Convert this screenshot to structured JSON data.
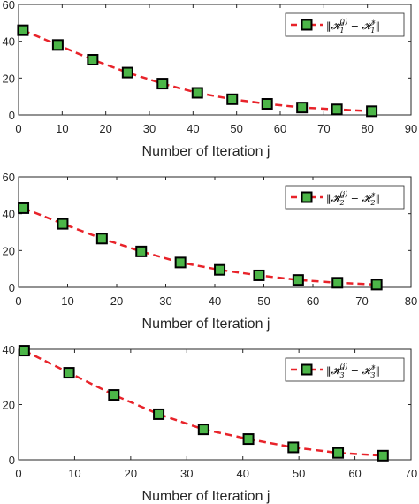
{
  "colors": {
    "line": "#e8232a",
    "marker_fill": "#4cb648",
    "marker_edge": "#000000",
    "axis": "#262626"
  },
  "chart_data": [
    {
      "type": "line",
      "xlabel": "Number of Iteration j",
      "ylabel": "",
      "xlim": [
        0,
        90
      ],
      "ylim": [
        0,
        60
      ],
      "xticks": [
        "0",
        "10",
        "20",
        "30",
        "40",
        "50",
        "60",
        "70",
        "80",
        "90"
      ],
      "yticks": [
        "0",
        "20",
        "40",
        "60"
      ],
      "legend": "top-right",
      "series": [
        {
          "name": "‖𝓗₁⁽ʲ⁾ − 𝓗₁*‖",
          "x": [
            1,
            9,
            17,
            25,
            33,
            41,
            49,
            57,
            65,
            73,
            81
          ],
          "y": [
            46,
            38,
            30,
            23,
            17,
            12,
            8.5,
            6,
            4,
            3,
            2
          ]
        }
      ]
    },
    {
      "type": "line",
      "xlabel": "Number of Iteration j",
      "ylabel": "",
      "xlim": [
        0,
        80
      ],
      "ylim": [
        0,
        60
      ],
      "xticks": [
        "0",
        "10",
        "20",
        "30",
        "40",
        "50",
        "60",
        "70",
        "80"
      ],
      "yticks": [
        "0",
        "20",
        "40",
        "60"
      ],
      "legend": "top-right",
      "series": [
        {
          "name": "‖𝓗₂⁽ʲ⁾ − 𝓗₂*‖",
          "x": [
            1,
            9,
            17,
            25,
            33,
            41,
            49,
            57,
            65,
            73
          ],
          "y": [
            43,
            34.5,
            26.5,
            19.5,
            13.5,
            9.5,
            6.5,
            4,
            2.5,
            1.5
          ]
        }
      ]
    },
    {
      "type": "line",
      "xlabel": "Number of Iteration j",
      "ylabel": "",
      "xlim": [
        0,
        70
      ],
      "ylim": [
        0,
        40
      ],
      "xticks": [
        "0",
        "10",
        "20",
        "30",
        "40",
        "50",
        "60",
        "70"
      ],
      "yticks": [
        "0",
        "20",
        "40"
      ],
      "legend": "top-right",
      "series": [
        {
          "name": "‖𝓗₃⁽ʲ⁾ − 𝓗₃*‖",
          "x": [
            1,
            9,
            17,
            25,
            33,
            41,
            49,
            57,
            65
          ],
          "y": [
            39.5,
            31.5,
            23.5,
            16.5,
            11,
            7.5,
            4.5,
            2.5,
            1.5
          ]
        }
      ]
    }
  ]
}
